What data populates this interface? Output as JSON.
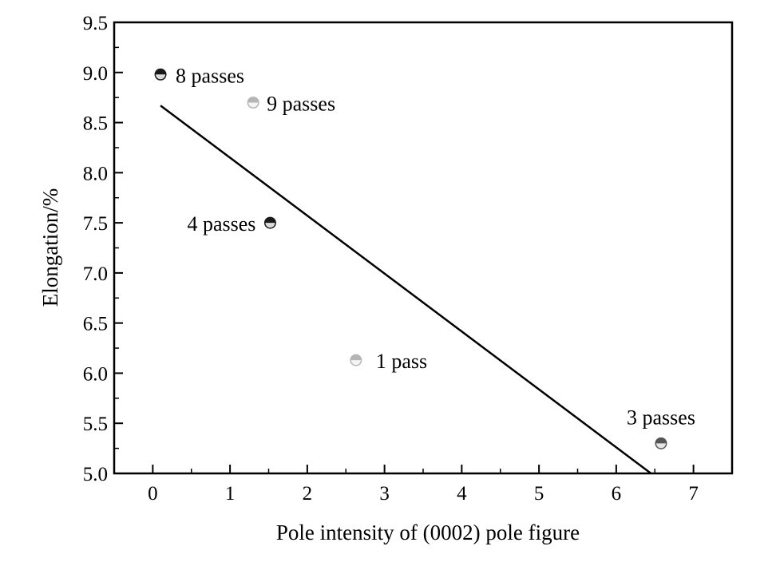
{
  "chart_data": {
    "type": "scatter",
    "title": "",
    "xlabel": "Pole intensity of (0002) pole figure",
    "ylabel": "Elongation/%",
    "xlim": [
      -0.5,
      7.5
    ],
    "ylim": [
      5.0,
      9.5
    ],
    "x_ticks": [
      0,
      1,
      2,
      3,
      4,
      5,
      6,
      7
    ],
    "x_tick_labels": [
      "0",
      "1",
      "2",
      "3",
      "4",
      "5",
      "6",
      "7"
    ],
    "y_ticks": [
      5.0,
      5.5,
      6.0,
      6.5,
      7.0,
      7.5,
      8.0,
      8.5,
      9.0,
      9.5
    ],
    "y_tick_labels": [
      "5.0",
      "5.5",
      "6.0",
      "6.5",
      "7.0",
      "7.5",
      "8.0",
      "8.5",
      "9.0",
      "9.5"
    ],
    "grid": false,
    "legend": "none",
    "points": [
      {
        "label": "8 passes",
        "x": 0.1,
        "y": 8.98,
        "style": "dark"
      },
      {
        "label": "9 passes",
        "x": 1.3,
        "y": 8.7,
        "style": "light"
      },
      {
        "label": "4 passes",
        "x": 1.52,
        "y": 7.5,
        "style": "dark"
      },
      {
        "label": "1 pass",
        "x": 2.63,
        "y": 6.13,
        "style": "light"
      },
      {
        "label": "3 passes",
        "x": 6.58,
        "y": 5.3,
        "style": "medium"
      }
    ],
    "fit_line": {
      "x": [
        0.1,
        6.45
      ],
      "y": [
        8.67,
        5.0
      ]
    },
    "colors": {
      "axis": "#000000",
      "line": "#000000",
      "dark": "#1a1a1a",
      "medium": "#555555",
      "light": "#b5b5b5"
    }
  }
}
